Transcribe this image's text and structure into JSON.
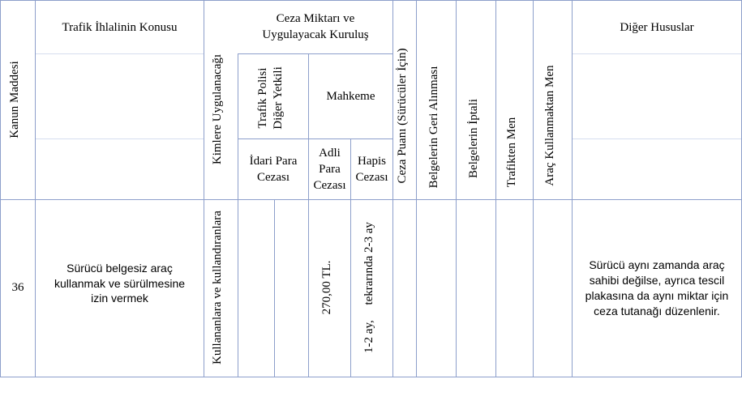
{
  "table": {
    "headers": {
      "kanun_maddesi": "Kanun Maddesi",
      "ihlal_konusu": "Trafik İhlalinin Konusu",
      "kimlere": "Kimlere Uygulanacağı",
      "ceza_miktari": "Ceza Miktarı ve\nUygulayacak Kuruluş",
      "trafik_polisi": "Trafik Polisi\nDiğer Yetkili",
      "mahkeme": "Mahkeme",
      "idari_para": "İdari Para\nCezası",
      "adli_para": "Adli\nPara\nCezası",
      "hapis": "Hapis\nCezası",
      "ceza_puani": "Ceza Puanı (Sürücüler İçin)",
      "belge_geri": "Belgelerin Geri Alınması",
      "belge_iptal": "Belgelerin İptali",
      "trafikten_men": "Trafikten Men",
      "arac_men": "Araç Kullanmaktan Men",
      "diger": "Diğer Hususlar"
    },
    "row": {
      "madde": "36",
      "konu": "Sürücü belgesiz araç\nkullanmak ve sürülmesine\nizin vermek",
      "kimlere": "Kullananlara ve kullandıranlara",
      "adli_para": "270,00 TL.",
      "hapis": "1-2 ay,     tekrarında 2-3 ay",
      "diger": "Sürücü aynı zamanda araç\nsahibi değilse, ayrıca tescil\nplakasına da aynı miktar için\nceza tutanağı düzenlenir."
    }
  }
}
